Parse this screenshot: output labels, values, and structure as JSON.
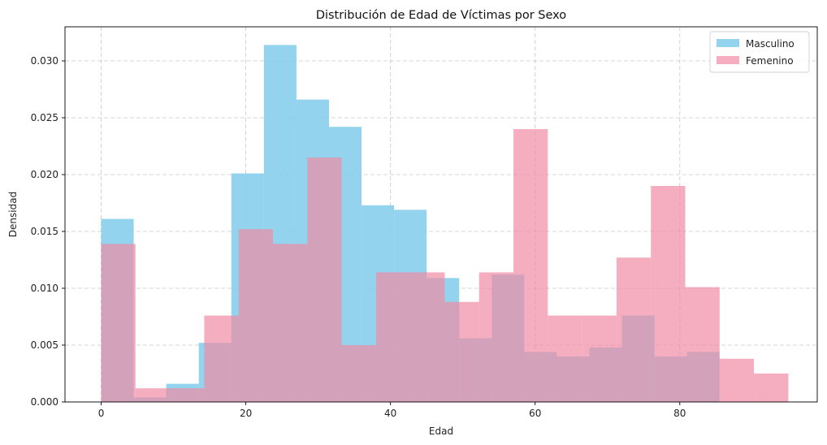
{
  "chart_data": {
    "type": "histogram",
    "title": "Distribución de Edad de Víctimas por Sexo",
    "xlabel": "Edad",
    "ylabel": "Densidad",
    "xlim": [
      -5,
      99
    ],
    "ylim": [
      0,
      0.033
    ],
    "xticks": [
      0,
      20,
      40,
      60,
      80
    ],
    "yticks": [
      0.0,
      0.005,
      0.01,
      0.015,
      0.02,
      0.025,
      0.03
    ],
    "ytick_labels": [
      "0.000",
      "0.005",
      "0.010",
      "0.015",
      "0.020",
      "0.025",
      "0.030"
    ],
    "grid": true,
    "legend_position": "top-right",
    "series": [
      {
        "name": "Masculino",
        "color": "#87CEEB",
        "alpha": 0.9,
        "bin_edges": [
          0,
          4.5,
          9,
          13.5,
          18,
          22.5,
          27,
          31.5,
          36,
          40.5,
          45,
          49.5,
          54,
          58.5,
          63,
          67.5,
          72,
          76.5,
          81,
          85.5
        ],
        "values": [
          0.0161,
          0.0004,
          0.0016,
          0.0052,
          0.0201,
          0.0314,
          0.0266,
          0.0242,
          0.0173,
          0.0169,
          0.0109,
          0.0056,
          0.0112,
          0.0044,
          0.004,
          0.0048,
          0.0076,
          0.004,
          0.0044
        ]
      },
      {
        "name": "Femenino",
        "color": "#F08CA4",
        "alpha": 0.7,
        "bin_edges": [
          0,
          4.75,
          9.5,
          14.25,
          19,
          23.75,
          28.5,
          33.25,
          38,
          42.75,
          47.5,
          52.25,
          57,
          61.75,
          66.5,
          71.25,
          76,
          80.75,
          85.5,
          90.25,
          95
        ],
        "values": [
          0.0139,
          0.0012,
          0.0012,
          0.0076,
          0.0152,
          0.0139,
          0.0215,
          0.005,
          0.0114,
          0.0114,
          0.0088,
          0.0114,
          0.024,
          0.0076,
          0.0076,
          0.0127,
          0.019,
          0.0101,
          0.0038,
          0.0025
        ]
      }
    ]
  }
}
